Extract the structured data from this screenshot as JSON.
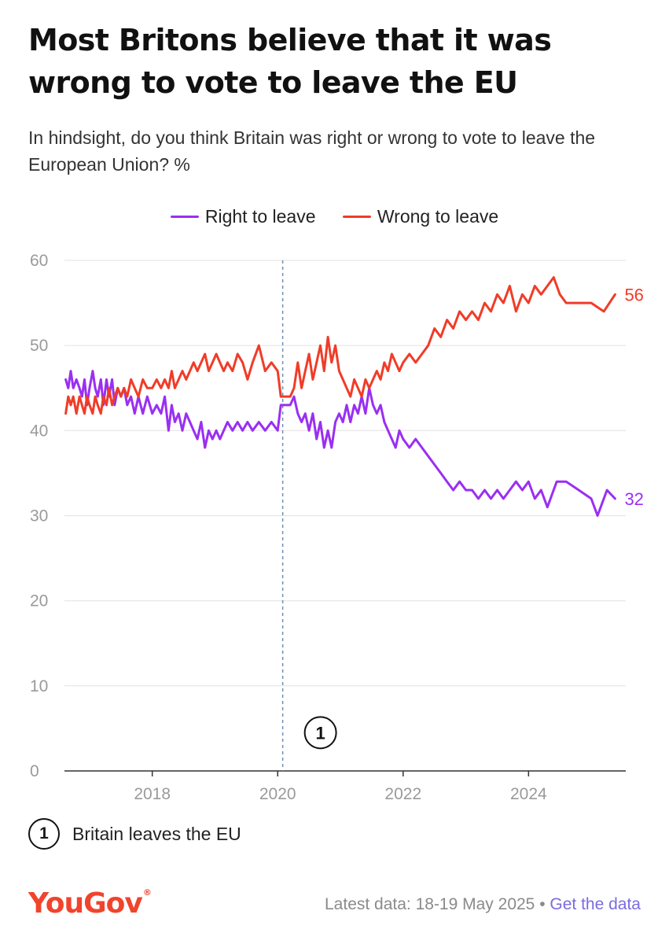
{
  "title": "Most Britons believe that it was wrong to vote to leave the EU",
  "subtitle": "In hindsight, do you think Britain was right or wrong to vote to leave the European Union? %",
  "colors": {
    "right": "#9a2ff2",
    "wrong": "#f03c28",
    "logo": "#f0442c",
    "link": "#7b6be0",
    "grid": "#e6e6e6",
    "axis": "#333333"
  },
  "annotation": {
    "marker": "1",
    "text": "Britain leaves the EU"
  },
  "footer": {
    "logo": "YouGov",
    "logo_mark": "®",
    "latest": "Latest data: 18-19 May 2025",
    "separator": "•",
    "link": "Get the data"
  },
  "chart_data": {
    "type": "line",
    "title": "Most Britons believe that it was wrong to vote to leave the EU",
    "ylabel": "%",
    "ylim": [
      0,
      60
    ],
    "xlim": [
      2016.6,
      2025.55
    ],
    "yticks": [
      0,
      10,
      20,
      30,
      40,
      50,
      60
    ],
    "xticks": [
      2018,
      2020,
      2022,
      2024
    ],
    "legend_position": "top-center",
    "series": [
      {
        "name": "Right to leave",
        "color": "#9a2ff2",
        "end_label": "32",
        "points": [
          [
            2016.62,
            46
          ],
          [
            2016.66,
            45
          ],
          [
            2016.7,
            47
          ],
          [
            2016.74,
            45
          ],
          [
            2016.79,
            46
          ],
          [
            2016.84,
            45
          ],
          [
            2016.88,
            44
          ],
          [
            2016.92,
            46
          ],
          [
            2016.96,
            43
          ],
          [
            2017.0,
            45
          ],
          [
            2017.05,
            47
          ],
          [
            2017.09,
            45
          ],
          [
            2017.13,
            44
          ],
          [
            2017.18,
            46
          ],
          [
            2017.22,
            43
          ],
          [
            2017.27,
            46
          ],
          [
            2017.31,
            44
          ],
          [
            2017.36,
            46
          ],
          [
            2017.4,
            43
          ],
          [
            2017.45,
            45
          ],
          [
            2017.5,
            44
          ],
          [
            2017.55,
            45
          ],
          [
            2017.6,
            43
          ],
          [
            2017.66,
            44
          ],
          [
            2017.72,
            42
          ],
          [
            2017.78,
            44
          ],
          [
            2017.85,
            42
          ],
          [
            2017.92,
            44
          ],
          [
            2018.0,
            42
          ],
          [
            2018.07,
            43
          ],
          [
            2018.14,
            42
          ],
          [
            2018.2,
            44
          ],
          [
            2018.26,
            40
          ],
          [
            2018.31,
            43
          ],
          [
            2018.36,
            41
          ],
          [
            2018.42,
            42
          ],
          [
            2018.48,
            40
          ],
          [
            2018.54,
            42
          ],
          [
            2018.6,
            41
          ],
          [
            2018.66,
            40
          ],
          [
            2018.72,
            39
          ],
          [
            2018.78,
            41
          ],
          [
            2018.84,
            38
          ],
          [
            2018.9,
            40
          ],
          [
            2018.96,
            39
          ],
          [
            2019.02,
            40
          ],
          [
            2019.08,
            39
          ],
          [
            2019.14,
            40
          ],
          [
            2019.2,
            41
          ],
          [
            2019.28,
            40
          ],
          [
            2019.36,
            41
          ],
          [
            2019.44,
            40
          ],
          [
            2019.52,
            41
          ],
          [
            2019.6,
            40
          ],
          [
            2019.7,
            41
          ],
          [
            2019.8,
            40
          ],
          [
            2019.9,
            41
          ],
          [
            2020.0,
            40
          ],
          [
            2020.05,
            43
          ],
          [
            2020.1,
            43
          ],
          [
            2020.2,
            43
          ],
          [
            2020.26,
            44
          ],
          [
            2020.32,
            42
          ],
          [
            2020.38,
            41
          ],
          [
            2020.44,
            42
          ],
          [
            2020.5,
            40
          ],
          [
            2020.56,
            42
          ],
          [
            2020.62,
            39
          ],
          [
            2020.68,
            41
          ],
          [
            2020.74,
            38
          ],
          [
            2020.8,
            40
          ],
          [
            2020.86,
            38
          ],
          [
            2020.92,
            41
          ],
          [
            2020.98,
            42
          ],
          [
            2021.04,
            41
          ],
          [
            2021.1,
            43
          ],
          [
            2021.16,
            41
          ],
          [
            2021.22,
            43
          ],
          [
            2021.28,
            42
          ],
          [
            2021.34,
            44
          ],
          [
            2021.4,
            42
          ],
          [
            2021.46,
            45
          ],
          [
            2021.52,
            43
          ],
          [
            2021.58,
            42
          ],
          [
            2021.64,
            43
          ],
          [
            2021.7,
            41
          ],
          [
            2021.76,
            40
          ],
          [
            2021.82,
            39
          ],
          [
            2021.88,
            38
          ],
          [
            2021.94,
            40
          ],
          [
            2022.0,
            39
          ],
          [
            2022.1,
            38
          ],
          [
            2022.2,
            39
          ],
          [
            2022.3,
            38
          ],
          [
            2022.4,
            37
          ],
          [
            2022.5,
            36
          ],
          [
            2022.6,
            35
          ],
          [
            2022.7,
            34
          ],
          [
            2022.8,
            33
          ],
          [
            2022.9,
            34
          ],
          [
            2023.0,
            33
          ],
          [
            2023.1,
            33
          ],
          [
            2023.2,
            32
          ],
          [
            2023.3,
            33
          ],
          [
            2023.4,
            32
          ],
          [
            2023.5,
            33
          ],
          [
            2023.6,
            32
          ],
          [
            2023.7,
            33
          ],
          [
            2023.8,
            34
          ],
          [
            2023.9,
            33
          ],
          [
            2024.0,
            34
          ],
          [
            2024.1,
            32
          ],
          [
            2024.2,
            33
          ],
          [
            2024.3,
            31
          ],
          [
            2024.45,
            34
          ],
          [
            2024.6,
            34
          ],
          [
            2024.8,
            33
          ],
          [
            2025.0,
            32
          ],
          [
            2025.1,
            30
          ],
          [
            2025.25,
            33
          ],
          [
            2025.38,
            32
          ]
        ]
      },
      {
        "name": "Wrong to leave",
        "color": "#f03c28",
        "end_label": "56",
        "points": [
          [
            2016.62,
            42
          ],
          [
            2016.66,
            44
          ],
          [
            2016.7,
            43
          ],
          [
            2016.74,
            44
          ],
          [
            2016.79,
            42
          ],
          [
            2016.84,
            44
          ],
          [
            2016.88,
            43
          ],
          [
            2016.92,
            42
          ],
          [
            2016.96,
            44
          ],
          [
            2017.0,
            43
          ],
          [
            2017.05,
            42
          ],
          [
            2017.09,
            44
          ],
          [
            2017.13,
            43
          ],
          [
            2017.18,
            42
          ],
          [
            2017.22,
            44
          ],
          [
            2017.27,
            43
          ],
          [
            2017.31,
            45
          ],
          [
            2017.36,
            43
          ],
          [
            2017.4,
            44
          ],
          [
            2017.45,
            45
          ],
          [
            2017.5,
            44
          ],
          [
            2017.55,
            45
          ],
          [
            2017.6,
            44
          ],
          [
            2017.66,
            46
          ],
          [
            2017.72,
            45
          ],
          [
            2017.78,
            44
          ],
          [
            2017.85,
            46
          ],
          [
            2017.92,
            45
          ],
          [
            2018.0,
            45
          ],
          [
            2018.07,
            46
          ],
          [
            2018.14,
            45
          ],
          [
            2018.2,
            46
          ],
          [
            2018.26,
            45
          ],
          [
            2018.31,
            47
          ],
          [
            2018.36,
            45
          ],
          [
            2018.42,
            46
          ],
          [
            2018.48,
            47
          ],
          [
            2018.54,
            46
          ],
          [
            2018.6,
            47
          ],
          [
            2018.66,
            48
          ],
          [
            2018.72,
            47
          ],
          [
            2018.78,
            48
          ],
          [
            2018.84,
            49
          ],
          [
            2018.9,
            47
          ],
          [
            2018.96,
            48
          ],
          [
            2019.02,
            49
          ],
          [
            2019.08,
            48
          ],
          [
            2019.14,
            47
          ],
          [
            2019.2,
            48
          ],
          [
            2019.28,
            47
          ],
          [
            2019.36,
            49
          ],
          [
            2019.44,
            48
          ],
          [
            2019.52,
            46
          ],
          [
            2019.6,
            48
          ],
          [
            2019.7,
            50
          ],
          [
            2019.8,
            47
          ],
          [
            2019.9,
            48
          ],
          [
            2020.0,
            47
          ],
          [
            2020.05,
            44
          ],
          [
            2020.1,
            44
          ],
          [
            2020.2,
            44
          ],
          [
            2020.26,
            45
          ],
          [
            2020.32,
            48
          ],
          [
            2020.38,
            45
          ],
          [
            2020.44,
            47
          ],
          [
            2020.5,
            49
          ],
          [
            2020.56,
            46
          ],
          [
            2020.62,
            48
          ],
          [
            2020.68,
            50
          ],
          [
            2020.74,
            47
          ],
          [
            2020.8,
            51
          ],
          [
            2020.86,
            48
          ],
          [
            2020.92,
            50
          ],
          [
            2020.98,
            47
          ],
          [
            2021.04,
            46
          ],
          [
            2021.1,
            45
          ],
          [
            2021.16,
            44
          ],
          [
            2021.22,
            46
          ],
          [
            2021.28,
            45
          ],
          [
            2021.34,
            44
          ],
          [
            2021.4,
            46
          ],
          [
            2021.46,
            45
          ],
          [
            2021.52,
            46
          ],
          [
            2021.58,
            47
          ],
          [
            2021.64,
            46
          ],
          [
            2021.7,
            48
          ],
          [
            2021.76,
            47
          ],
          [
            2021.82,
            49
          ],
          [
            2021.88,
            48
          ],
          [
            2021.94,
            47
          ],
          [
            2022.0,
            48
          ],
          [
            2022.1,
            49
          ],
          [
            2022.2,
            48
          ],
          [
            2022.3,
            49
          ],
          [
            2022.4,
            50
          ],
          [
            2022.5,
            52
          ],
          [
            2022.6,
            51
          ],
          [
            2022.7,
            53
          ],
          [
            2022.8,
            52
          ],
          [
            2022.9,
            54
          ],
          [
            2023.0,
            53
          ],
          [
            2023.1,
            54
          ],
          [
            2023.2,
            53
          ],
          [
            2023.3,
            55
          ],
          [
            2023.4,
            54
          ],
          [
            2023.5,
            56
          ],
          [
            2023.6,
            55
          ],
          [
            2023.7,
            57
          ],
          [
            2023.8,
            54
          ],
          [
            2023.9,
            56
          ],
          [
            2024.0,
            55
          ],
          [
            2024.1,
            57
          ],
          [
            2024.2,
            56
          ],
          [
            2024.3,
            57
          ],
          [
            2024.4,
            58
          ],
          [
            2024.5,
            56
          ],
          [
            2024.6,
            55
          ],
          [
            2024.8,
            55
          ],
          [
            2025.0,
            55
          ],
          [
            2025.2,
            54
          ],
          [
            2025.38,
            56
          ]
        ]
      }
    ],
    "events": [
      {
        "x": 2020.08,
        "label": "1"
      }
    ]
  }
}
